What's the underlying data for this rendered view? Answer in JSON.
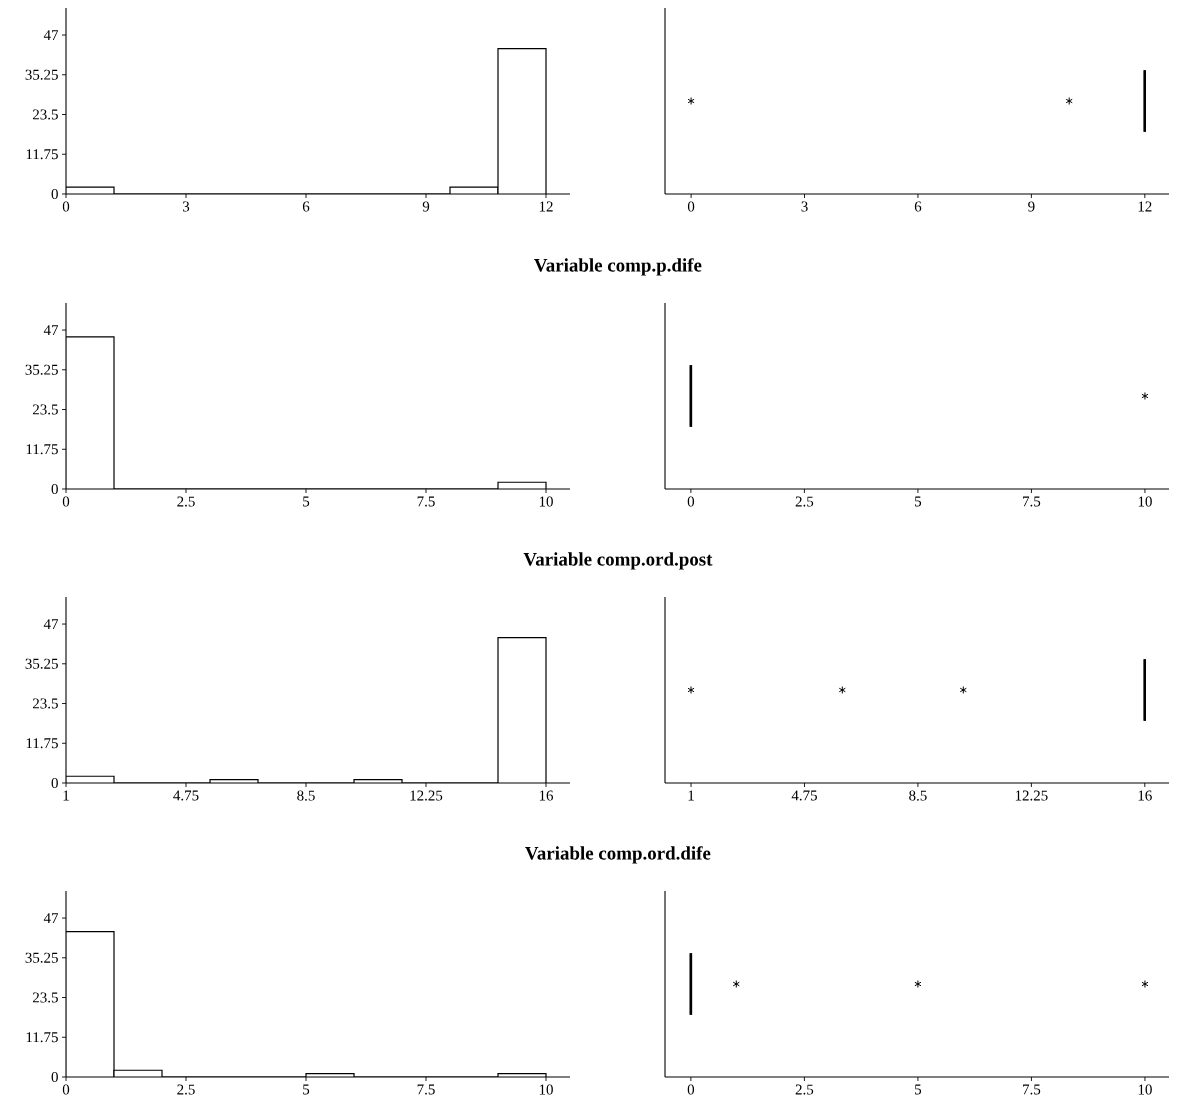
{
  "chart_data": [
    {
      "type": "histogram",
      "bins": [
        0,
        1.2,
        2.4,
        3.6,
        4.8,
        6,
        7.2,
        8.4,
        9.6,
        10.8,
        12
      ],
      "values": [
        2,
        0,
        0,
        0,
        0,
        0,
        0,
        0,
        2,
        43
      ],
      "xlim": [
        0,
        12.6
      ],
      "xticks": [
        0,
        3,
        6,
        9,
        12
      ],
      "ylim": [
        0,
        55
      ],
      "yticks": [
        0,
        11.75,
        23.5,
        35.25,
        47
      ]
    },
    {
      "type": "box",
      "orientation": "horizontal",
      "categories": [
        null
      ],
      "boxes": [
        {
          "low": 12,
          "q1": 12,
          "median": 12,
          "q3": 12,
          "high": 12,
          "outliers": [
            0,
            10
          ]
        }
      ],
      "xlim": [
        -0.69,
        12.64
      ],
      "xticks": [
        0,
        3,
        6,
        9,
        12
      ],
      "tick_labels": "x",
      "marker": "star"
    },
    {
      "type": "histogram",
      "title": "Variable comp.p.dife",
      "bins": [
        0,
        1,
        2,
        3,
        4,
        5,
        6,
        7,
        8,
        9,
        10
      ],
      "values": [
        45,
        0,
        0,
        0,
        0,
        0,
        0,
        0,
        0,
        2
      ],
      "xlim": [
        0,
        10.5
      ],
      "xticks": [
        0,
        2.5,
        5,
        7.5,
        10
      ],
      "ylim": [
        0,
        55
      ],
      "yticks": [
        0,
        11.75,
        23.5,
        35.25,
        47
      ]
    },
    {
      "type": "box",
      "orientation": "horizontal",
      "categories": [
        null
      ],
      "boxes": [
        {
          "low": 0,
          "q1": 0,
          "median": 0,
          "q3": 0,
          "high": 0,
          "outliers": [
            10
          ]
        }
      ],
      "xlim": [
        -0.57,
        10.53
      ],
      "xticks": [
        0,
        2.5,
        5,
        7.5,
        10
      ],
      "tick_labels": "x",
      "marker": "star"
    },
    {
      "type": "histogram",
      "title": "Variable comp.ord.post",
      "bins": [
        1,
        2.5,
        4,
        5.5,
        7,
        8.5,
        10,
        11.5,
        13,
        14.5,
        16
      ],
      "values": [
        2,
        0,
        0,
        1,
        0,
        0,
        1,
        0,
        0,
        43
      ],
      "xlim": [
        1,
        16.75
      ],
      "xticks": [
        1,
        4.75,
        8.5,
        12.25,
        16
      ],
      "ylim": [
        0,
        55
      ],
      "yticks": [
        0,
        11.75,
        23.5,
        35.25,
        47
      ]
    },
    {
      "type": "box",
      "orientation": "horizontal",
      "categories": [
        null
      ],
      "boxes": [
        {
          "low": 16,
          "q1": 16,
          "median": 16,
          "q3": 16,
          "high": 16,
          "outliers": [
            1,
            6,
            10
          ]
        }
      ],
      "xlim": [
        0.14,
        16.8
      ],
      "xticks": [
        1,
        4.75,
        8.5,
        12.25,
        16
      ],
      "tick_labels": "x",
      "marker": "star"
    },
    {
      "type": "histogram",
      "title": "Variable comp.ord.dife",
      "bins": [
        0,
        1,
        2,
        3,
        4,
        5,
        6,
        7,
        8,
        9,
        10
      ],
      "values": [
        43,
        2,
        0,
        0,
        0,
        1,
        0,
        0,
        0,
        1
      ],
      "xlim": [
        0,
        10.5
      ],
      "xticks": [
        0,
        2.5,
        5,
        7.5,
        10
      ],
      "ylim": [
        0,
        55
      ],
      "yticks": [
        0,
        11.75,
        23.5,
        35.25,
        47
      ]
    },
    {
      "type": "box",
      "orientation": "horizontal",
      "categories": [
        null
      ],
      "boxes": [
        {
          "low": 0,
          "q1": 0,
          "median": 0,
          "q3": 0,
          "high": 0,
          "outliers": [
            1,
            5,
            10
          ]
        }
      ],
      "xlim": [
        -0.57,
        10.53
      ],
      "xticks": [
        0,
        2.5,
        5,
        7.5,
        10
      ],
      "tick_labels": "x",
      "marker": "star"
    }
  ]
}
